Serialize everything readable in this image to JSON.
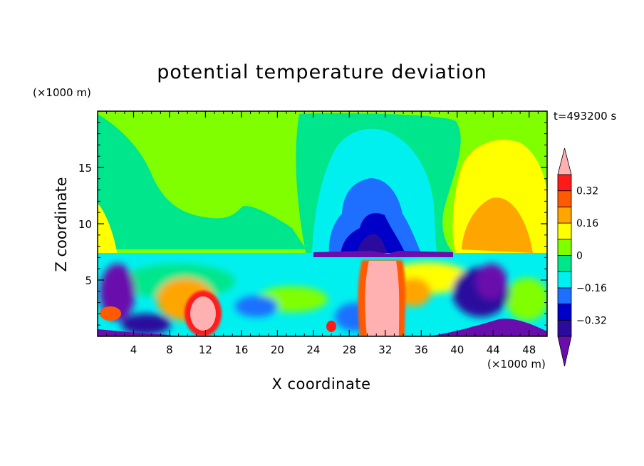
{
  "chart_data": {
    "type": "heatmap",
    "title": "potential temperature deviation",
    "xlabel": "X coordinate",
    "ylabel": "Z coordinate",
    "x_unit": "(×1000 m)",
    "y_unit": "(×1000 m)",
    "time_label": "t=493200 s",
    "xlim": [
      0,
      50
    ],
    "ylim": [
      0,
      20
    ],
    "x_ticks": [
      "4",
      "8",
      "12",
      "16",
      "20",
      "24",
      "28",
      "32",
      "36",
      "40",
      "44",
      "48"
    ],
    "x_tick_values": [
      4,
      8,
      12,
      16,
      20,
      24,
      28,
      32,
      36,
      40,
      44,
      48
    ],
    "y_ticks": [
      "5",
      "10",
      "15"
    ],
    "y_tick_values": [
      5,
      10,
      15
    ],
    "colorbar": {
      "tick_labels": [
        "0.32",
        "0.16",
        "0",
        "−0.16",
        "−0.32"
      ],
      "tick_values": [
        0.32,
        0.16,
        0,
        -0.16,
        -0.32
      ],
      "levels": [
        -0.4,
        -0.32,
        -0.24,
        -0.16,
        -0.08,
        0,
        0.08,
        0.16,
        0.24,
        0.32,
        0.4
      ],
      "colors": [
        "#6a0dad",
        "#2b0a9e",
        "#0000c8",
        "#1e6fff",
        "#00f0f0",
        "#00e68c",
        "#80ff00",
        "#ffff00",
        "#ffa500",
        "#ff5a00",
        "#ff1a1a",
        "#ffb0b0"
      ]
    },
    "field_features": [
      {
        "kind": "warm_dome",
        "x": 45,
        "z": 11,
        "value": 0.18
      },
      {
        "kind": "cold_dome",
        "x": 31,
        "z": 11,
        "value": -0.3
      },
      {
        "kind": "warm_plume",
        "x": 31,
        "z": 3,
        "value": 0.42
      },
      {
        "kind": "warm_blob",
        "x": 11,
        "z": 2,
        "value": 0.4
      },
      {
        "kind": "cold_patch",
        "x": 44,
        "z": 3,
        "value": -0.38
      },
      {
        "kind": "cold_patch",
        "x": 4,
        "z": 4,
        "value": -0.36
      }
    ]
  },
  "colors": {
    "background": "#ffffff",
    "axes": "#000000"
  }
}
